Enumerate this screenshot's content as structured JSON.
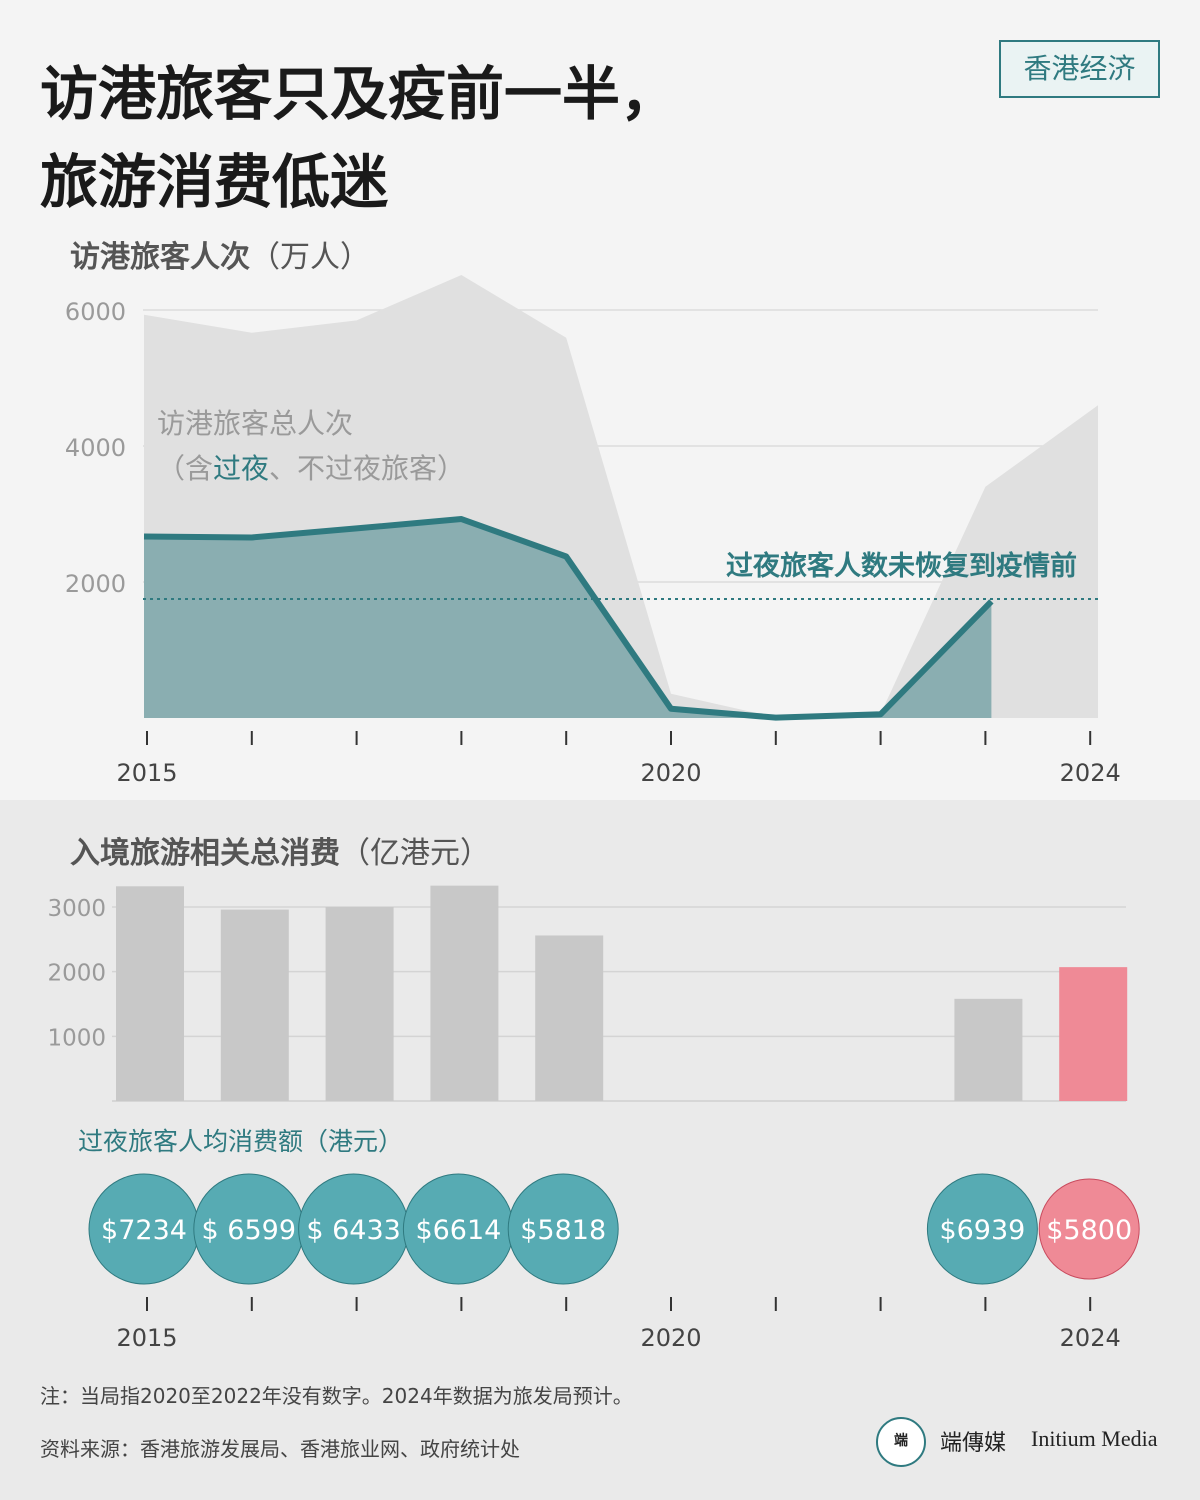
{
  "header": {
    "title_line1": "访港旅客只及疫前一半，",
    "title_line2": "旅游消费低迷",
    "tag": "香港经济"
  },
  "visitors_section": {
    "title": "访港旅客人次",
    "unit": "（万人）",
    "total_label_line1": "访港旅客总人次",
    "total_label_line2_pre": "（含",
    "total_label_line2_hl": "过夜",
    "total_label_line2_post": "、不过夜旅客）",
    "overnight_annotation": "过夜旅客人数未恢复到疫情前"
  },
  "spending_section": {
    "title": "入境旅游相关总消费",
    "unit": "（亿港元）",
    "per_capita_title": "过夜旅客人均消费额（港元）"
  },
  "colors": {
    "teal": "#2f7a80",
    "teal_fill": "#8aaeb1",
    "grey_area": "#e0e0e0",
    "bar_grey": "#c8c8c8",
    "bar_pink": "#ef8a96",
    "bubble_teal": "#57abb3",
    "bubble_pink": "#ef8a96"
  },
  "chart_data": [
    {
      "type": "area",
      "title": "访港旅客人次",
      "ylabel": "（万人）",
      "x": [
        2015,
        2016,
        2017,
        2018,
        2019,
        2020,
        2021,
        2022,
        2023,
        2024
      ],
      "x_tick_labels": [
        "2015",
        "",
        "",
        "",
        "",
        "2020",
        "",
        "",
        "",
        "2024"
      ],
      "y_ticks": [
        2000,
        4000,
        6000
      ],
      "ylim": [
        0,
        6600
      ],
      "grid": true,
      "series": [
        {
          "name": "访港旅客总人次（含过夜、不过夜旅客）",
          "style": "area",
          "values": [
            5930,
            5665,
            5847,
            6515,
            5591,
            357,
            9,
            60,
            3400,
            4600
          ]
        },
        {
          "name": "过夜旅客",
          "style": "line-area",
          "values": [
            2669,
            2655,
            2788,
            2926,
            2375,
            136,
            5,
            55,
            1715,
            null
          ]
        }
      ],
      "reference_line": {
        "y": 1750,
        "label": "过夜旅客人数未恢复到疫情前"
      }
    },
    {
      "type": "bar",
      "title": "入境旅游相关总消费",
      "ylabel": "（亿港元）",
      "x": [
        2015,
        2016,
        2017,
        2018,
        2019,
        2020,
        2021,
        2022,
        2023,
        2024
      ],
      "values": [
        3320,
        2960,
        3000,
        3330,
        2560,
        null,
        null,
        null,
        1580,
        2070
      ],
      "highlight": [
        false,
        false,
        false,
        false,
        false,
        false,
        false,
        false,
        false,
        true
      ],
      "y_ticks": [
        1000,
        2000,
        3000
      ],
      "ylim": [
        0,
        3300
      ],
      "grid": true
    },
    {
      "type": "scatter",
      "title": "过夜旅客人均消费额（港元）",
      "x": [
        2015,
        2016,
        2017,
        2018,
        2019,
        2023,
        2024
      ],
      "x_tick_labels": [
        "2015",
        "",
        "",
        "",
        "",
        "2020",
        "",
        "",
        "",
        "2024"
      ],
      "values": [
        7234,
        6599,
        6433,
        6614,
        5818,
        6939,
        5800
      ],
      "labels": [
        "$7234",
        "$ 6599",
        "$ 6433",
        "$6614",
        "$5818",
        "$6939",
        "$5800"
      ],
      "highlight": [
        false,
        false,
        false,
        false,
        false,
        false,
        true
      ]
    }
  ],
  "footer": {
    "note": "注：当局指2020至2022年没有数字。2024年数据为旅发局预计。",
    "source": "资料来源：香港旅游发展局、香港旅业网、政府统计处",
    "brand_mark": "端",
    "brand_name": "端傳媒",
    "brand_en": "Initium Media"
  }
}
